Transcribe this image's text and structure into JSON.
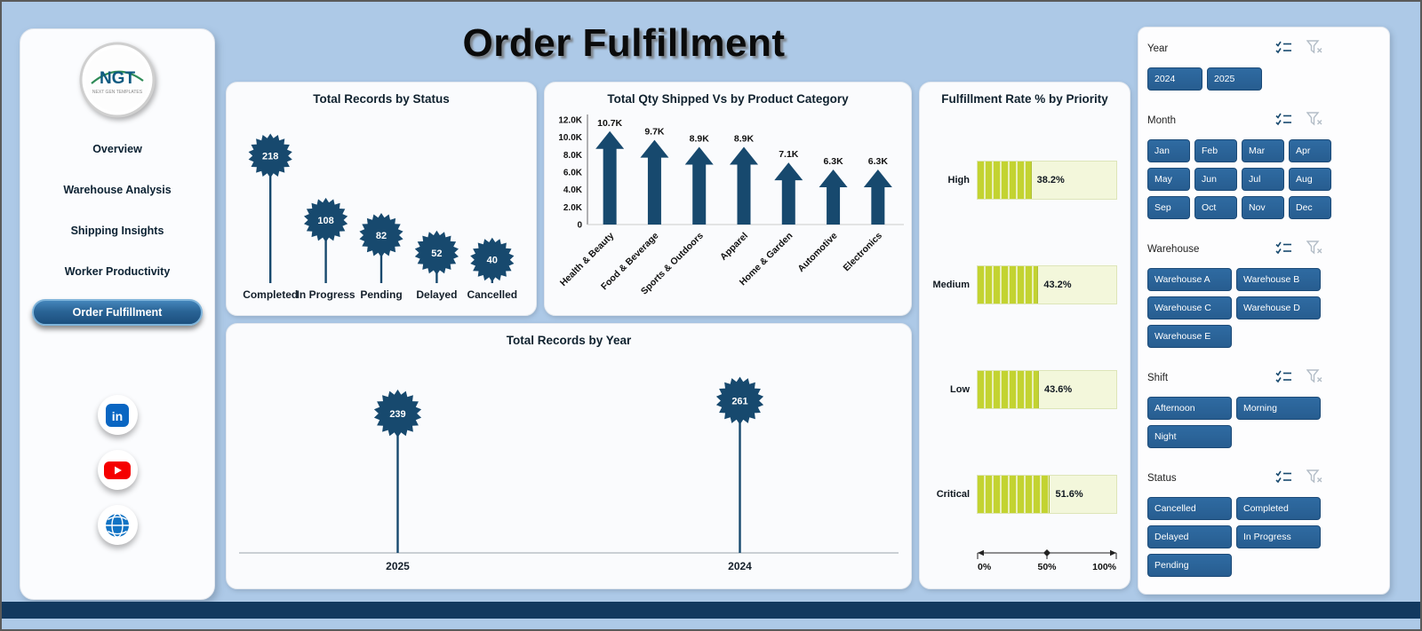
{
  "page": {
    "title": "Order Fulfillment"
  },
  "sidebar": {
    "logo": {
      "text": "NGT",
      "subtext": "NEXT GEN TEMPLATES"
    },
    "items": [
      {
        "label": "Overview",
        "active": false
      },
      {
        "label": "Warehouse Analysis",
        "active": false
      },
      {
        "label": "Shipping Insights",
        "active": false
      },
      {
        "label": "Worker Productivity",
        "active": false
      },
      {
        "label": "Order Fulfillment",
        "active": true
      }
    ],
    "social": [
      "linkedin",
      "youtube",
      "web"
    ]
  },
  "filters": [
    {
      "name": "Year",
      "options": [
        "2024",
        "2025"
      ]
    },
    {
      "name": "Month",
      "options": [
        "Jan",
        "Feb",
        "Mar",
        "Apr",
        "May",
        "Jun",
        "Jul",
        "Aug",
        "Sep",
        "Oct",
        "Nov",
        "Dec"
      ]
    },
    {
      "name": "Warehouse",
      "options": [
        "Warehouse A",
        "Warehouse B",
        "Warehouse C",
        "Warehouse D",
        "Warehouse E"
      ]
    },
    {
      "name": "Shift",
      "options": [
        "Afternoon",
        "Morning",
        "Night"
      ]
    },
    {
      "name": "Status",
      "options": [
        "Cancelled",
        "Completed",
        "Delayed",
        "In Progress",
        "Pending"
      ]
    }
  ],
  "chart_data": [
    {
      "type": "lollipop",
      "title": "Total Records by Status",
      "categories": [
        "Completed",
        "In Progress",
        "Pending",
        "Delayed",
        "Cancelled"
      ],
      "values": [
        218,
        108,
        82,
        52,
        40
      ],
      "ylim": [
        0,
        240
      ]
    },
    {
      "type": "bar",
      "title": "Total Qty Shipped Vs  by Product Category",
      "categories": [
        "Health & Beauty",
        "Food & Beverage",
        "Sports & Outdoors",
        "Apparel",
        "Home & Garden",
        "Automotive",
        "Electronics"
      ],
      "values": [
        10700,
        9700,
        8900,
        8900,
        7100,
        6300,
        6300
      ],
      "labels": [
        "10.7K",
        "9.7K",
        "8.9K",
        "8.9K",
        "7.1K",
        "6.3K",
        "6.3K"
      ],
      "ytick_labels": [
        "12.0K",
        "10.0K",
        "8.0K",
        "6.0K",
        "4.0K",
        "2.0K",
        "0"
      ],
      "ytick_values": [
        12000,
        10000,
        8000,
        6000,
        4000,
        2000,
        0
      ],
      "ylim": [
        0,
        12000
      ]
    },
    {
      "type": "bar-horizontal",
      "title": "Fulfillment Rate % by Priority",
      "categories": [
        "High",
        "Medium",
        "Low",
        "Critical"
      ],
      "values": [
        38.2,
        43.2,
        43.6,
        51.6
      ],
      "labels": [
        "38.2%",
        "43.2%",
        "43.6%",
        "51.6%"
      ],
      "xticks": [
        "0%",
        "50%",
        "100%"
      ],
      "xlim": [
        0,
        100
      ]
    },
    {
      "type": "lollipop",
      "title": "Total Records by Year",
      "categories": [
        "2025",
        "2024"
      ],
      "values": [
        239,
        261
      ],
      "ylim": [
        0,
        280
      ]
    }
  ],
  "colors": {
    "primary": "#17496e",
    "button_blue": "#2b6195",
    "gauge_fill": "#c3d331",
    "gauge_track": "#f3f7db",
    "background": "#adc9e7",
    "footer": "#12395f"
  }
}
